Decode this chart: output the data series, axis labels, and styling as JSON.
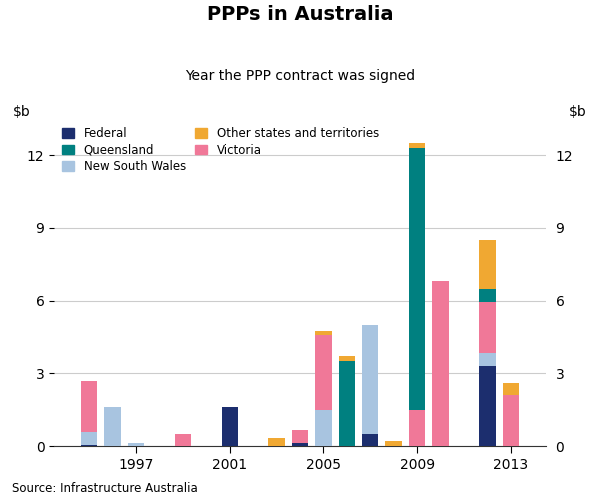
{
  "title": "PPPs in Australia",
  "subtitle": "Year the PPP contract was signed",
  "source": "Source: Infrastructure Australia",
  "ylim": [
    0,
    13.5
  ],
  "yticks": [
    0,
    3,
    6,
    9,
    12
  ],
  "xtick_labels": [
    "1997",
    "2001",
    "2005",
    "2009",
    "2013"
  ],
  "colors": {
    "Federal": "#1c2e6e",
    "New South Wales": "#a8c4e0",
    "Victoria": "#f07898",
    "Queensland": "#008080",
    "Other states and territories": "#f0a832"
  },
  "years": [
    1995,
    1996,
    1997,
    1999,
    2001,
    2002,
    2003,
    2004,
    2005,
    2006,
    2007,
    2008,
    2009,
    2010,
    2011,
    2012,
    2013
  ],
  "data": {
    "Federal": [
      0.05,
      0.0,
      0.0,
      0.0,
      1.6,
      0.0,
      0.0,
      0.15,
      0.0,
      0.0,
      0.5,
      0.0,
      0.0,
      0.0,
      0.0,
      3.3,
      0.0
    ],
    "New South Wales": [
      0.55,
      1.6,
      0.15,
      0.0,
      0.0,
      0.0,
      0.0,
      0.0,
      1.5,
      0.0,
      4.5,
      0.0,
      0.0,
      0.0,
      0.0,
      0.55,
      0.0
    ],
    "Victoria": [
      2.1,
      0.0,
      0.0,
      0.5,
      0.0,
      0.0,
      0.0,
      0.5,
      3.1,
      0.0,
      0.0,
      0.0,
      1.5,
      6.8,
      0.0,
      2.1,
      2.1
    ],
    "Queensland": [
      0.0,
      0.0,
      0.0,
      0.0,
      0.0,
      0.0,
      0.0,
      0.0,
      0.0,
      3.5,
      0.0,
      0.0,
      10.8,
      0.0,
      0.0,
      0.55,
      0.0
    ],
    "Other states and territories": [
      0.0,
      0.0,
      0.0,
      0.0,
      0.0,
      0.0,
      0.35,
      0.0,
      0.15,
      0.2,
      0.0,
      0.2,
      0.2,
      0.0,
      0.0,
      2.0,
      0.5
    ]
  }
}
